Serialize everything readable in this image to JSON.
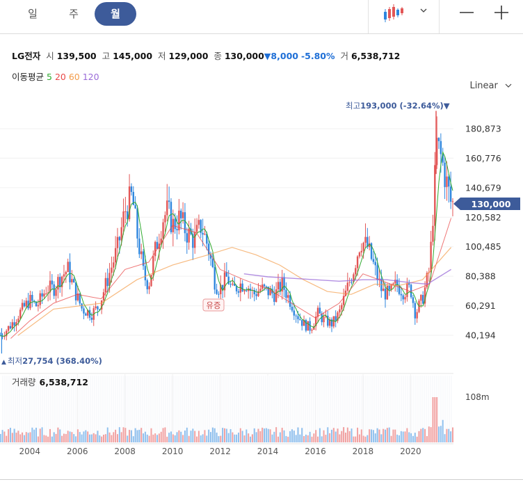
{
  "tabs": {
    "day": "일",
    "week": "주",
    "month": "월"
  },
  "stock": {
    "name": "LG전자",
    "open_label": "시",
    "open": "139,500",
    "high_label": "고",
    "high": "145,000",
    "low_label": "저",
    "low": "129,000",
    "close_label": "종",
    "close": "130,000",
    "change_arrow": "▼",
    "change": "8,000",
    "change_pct": "-5.80%",
    "volume_label": "거",
    "volume": "6,538,712"
  },
  "ma": {
    "label": "이동평균",
    "p5": "5",
    "p20": "20",
    "p60": "60",
    "p120": "120",
    "colors": {
      "p5": "#2faa2f",
      "p20": "#e94848",
      "p60": "#f39c4a",
      "p120": "#9a6bd8"
    }
  },
  "scale_label": "Linear",
  "price_axis": [
    "180,873",
    "160,776",
    "140,679",
    "120,582",
    "100,485",
    "80,388",
    "60,291",
    "40,194"
  ],
  "current_price_tag": "130,000",
  "annotations": {
    "high_prefix": "최고",
    "high_value": "193,000 (-32.64%)",
    "high_arrow": "▼",
    "low_arrow": "▲",
    "low_prefix": "최저",
    "low_value": "27,754 (368.40%)",
    "event": "유증"
  },
  "volume_panel": {
    "label": "거래량",
    "value": "6,538,712",
    "axis": "108m"
  },
  "x_axis": [
    "2004",
    "2006",
    "2008",
    "2010",
    "2012",
    "2014",
    "2016",
    "2018",
    "2020"
  ],
  "colors": {
    "up": "#e25555",
    "down": "#2e86de",
    "accent": "#3d5b9a"
  },
  "chart_data": {
    "type": "candlestick",
    "title": "LG전자",
    "x_range": [
      2002.75,
      2021.8
    ],
    "y_range": [
      27754,
      193000
    ],
    "ma_periods": [
      5,
      20,
      60,
      120
    ],
    "price_path": [
      [
        2002.8,
        40000
      ],
      [
        2003.2,
        47000
      ],
      [
        2003.6,
        56000
      ],
      [
        2004.0,
        64000
      ],
      [
        2004.3,
        60000
      ],
      [
        2004.7,
        72000
      ],
      [
        2005.0,
        72000
      ],
      [
        2005.3,
        80000
      ],
      [
        2005.6,
        85000
      ],
      [
        2005.9,
        70000
      ],
      [
        2006.2,
        58000
      ],
      [
        2006.6,
        55000
      ],
      [
        2006.9,
        60000
      ],
      [
        2007.3,
        80000
      ],
      [
        2007.7,
        100000
      ],
      [
        2008.0,
        125000
      ],
      [
        2008.3,
        135000
      ],
      [
        2008.5,
        110000
      ],
      [
        2008.8,
        80000
      ],
      [
        2009.0,
        75000
      ],
      [
        2009.3,
        100000
      ],
      [
        2009.6,
        120000
      ],
      [
        2009.8,
        125000
      ],
      [
        2010.0,
        115000
      ],
      [
        2010.3,
        120000
      ],
      [
        2010.6,
        110000
      ],
      [
        2010.9,
        105000
      ],
      [
        2011.2,
        115000
      ],
      [
        2011.5,
        100000
      ],
      [
        2011.8,
        75000
      ],
      [
        2012.0,
        72000
      ],
      [
        2012.3,
        80000
      ],
      [
        2012.5,
        70000
      ],
      [
        2012.8,
        75000
      ],
      [
        2013.1,
        75000
      ],
      [
        2013.4,
        68000
      ],
      [
        2013.7,
        72000
      ],
      [
        2014.0,
        70000
      ],
      [
        2014.3,
        68000
      ],
      [
        2014.6,
        75000
      ],
      [
        2014.9,
        65000
      ],
      [
        2015.2,
        55000
      ],
      [
        2015.5,
        48000
      ],
      [
        2015.8,
        45000
      ],
      [
        2016.1,
        55000
      ],
      [
        2016.4,
        50000
      ],
      [
        2016.7,
        48000
      ],
      [
        2017.0,
        55000
      ],
      [
        2017.3,
        70000
      ],
      [
        2017.6,
        85000
      ],
      [
        2017.9,
        105000
      ],
      [
        2018.2,
        100000
      ],
      [
        2018.5,
        85000
      ],
      [
        2018.8,
        70000
      ],
      [
        2019.1,
        68000
      ],
      [
        2019.4,
        75000
      ],
      [
        2019.7,
        70000
      ],
      [
        2020.0,
        72000
      ],
      [
        2020.2,
        55000
      ],
      [
        2020.5,
        65000
      ],
      [
        2020.8,
        85000
      ],
      [
        2021.0,
        140000
      ],
      [
        2021.1,
        170000
      ],
      [
        2021.3,
        160000
      ],
      [
        2021.5,
        145000
      ],
      [
        2021.7,
        130000
      ]
    ],
    "ma60": [
      [
        2003.5,
        40000
      ],
      [
        2005,
        58000
      ],
      [
        2007,
        62000
      ],
      [
        2008.5,
        78000
      ],
      [
        2010,
        88000
      ],
      [
        2011.5,
        95000
      ],
      [
        2012.5,
        100000
      ],
      [
        2013.5,
        95000
      ],
      [
        2014.5,
        88000
      ],
      [
        2015.5,
        78000
      ],
      [
        2016.5,
        70000
      ],
      [
        2017.5,
        68000
      ],
      [
        2018.5,
        75000
      ],
      [
        2019.5,
        74000
      ],
      [
        2020.5,
        78000
      ],
      [
        2021.7,
        100000
      ]
    ],
    "ma120": [
      [
        2013,
        82000
      ],
      [
        2014,
        80000
      ],
      [
        2015,
        79000
      ],
      [
        2016,
        78000
      ],
      [
        2017,
        77000
      ],
      [
        2018,
        78000
      ],
      [
        2019,
        78000
      ],
      [
        2020,
        76000
      ],
      [
        2020.7,
        75000
      ],
      [
        2021.7,
        85000
      ]
    ],
    "ma20": [
      [
        2003.2,
        38000
      ],
      [
        2004,
        50000
      ],
      [
        2005,
        62000
      ],
      [
        2006,
        68000
      ],
      [
        2007,
        65000
      ],
      [
        2008,
        85000
      ],
      [
        2009,
        90000
      ],
      [
        2010,
        115000
      ],
      [
        2011,
        110000
      ],
      [
        2012,
        85000
      ],
      [
        2013,
        78000
      ],
      [
        2014,
        72000
      ],
      [
        2015,
        62000
      ],
      [
        2016,
        52000
      ],
      [
        2017,
        62000
      ],
      [
        2018,
        82000
      ],
      [
        2019,
        76000
      ],
      [
        2020,
        70000
      ],
      [
        2020.8,
        75000
      ],
      [
        2021.7,
        120000
      ]
    ]
  }
}
